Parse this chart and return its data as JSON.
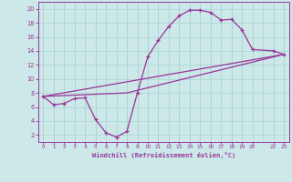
{
  "title": "",
  "xlabel": "Windchill (Refroidissement éolien,°C)",
  "ylabel": "",
  "background_color": "#cce8e8",
  "grid_color": "#aad4d4",
  "line_color": "#993399",
  "xlim": [
    -0.5,
    23.5
  ],
  "ylim": [
    1,
    21
  ],
  "xticks": [
    0,
    1,
    2,
    3,
    4,
    5,
    6,
    7,
    8,
    9,
    10,
    11,
    12,
    13,
    14,
    15,
    16,
    17,
    18,
    19,
    20,
    22,
    23
  ],
  "xticklabels": [
    "0",
    "1",
    "2",
    "3",
    "4",
    "5",
    "6",
    "7",
    "8",
    "9",
    "10",
    "11",
    "12",
    "13",
    "14",
    "15",
    "16",
    "17",
    "18",
    "19",
    "20",
    "22",
    "23"
  ],
  "yticks": [
    2,
    4,
    6,
    8,
    10,
    12,
    14,
    16,
    18,
    20
  ],
  "yticklabels": [
    "2",
    "4",
    "6",
    "8",
    "10",
    "12",
    "14",
    "16",
    "18",
    "20"
  ],
  "line1_x": [
    0,
    1,
    2,
    3,
    4,
    5,
    6,
    7,
    8,
    9,
    10,
    11,
    12,
    13,
    14,
    15,
    16,
    17,
    18,
    19,
    20,
    22,
    23
  ],
  "line1_y": [
    7.5,
    6.3,
    6.5,
    7.2,
    7.3,
    4.2,
    2.3,
    1.7,
    2.5,
    8.0,
    13.2,
    15.5,
    17.5,
    19.0,
    19.8,
    19.8,
    19.5,
    18.4,
    18.5,
    17.0,
    14.2,
    14.0,
    13.5
  ],
  "line2_x": [
    0,
    23
  ],
  "line2_y": [
    7.5,
    13.5
  ],
  "line3_x": [
    0,
    8,
    23
  ],
  "line3_y": [
    7.5,
    8.0,
    13.5
  ],
  "marker": "+"
}
